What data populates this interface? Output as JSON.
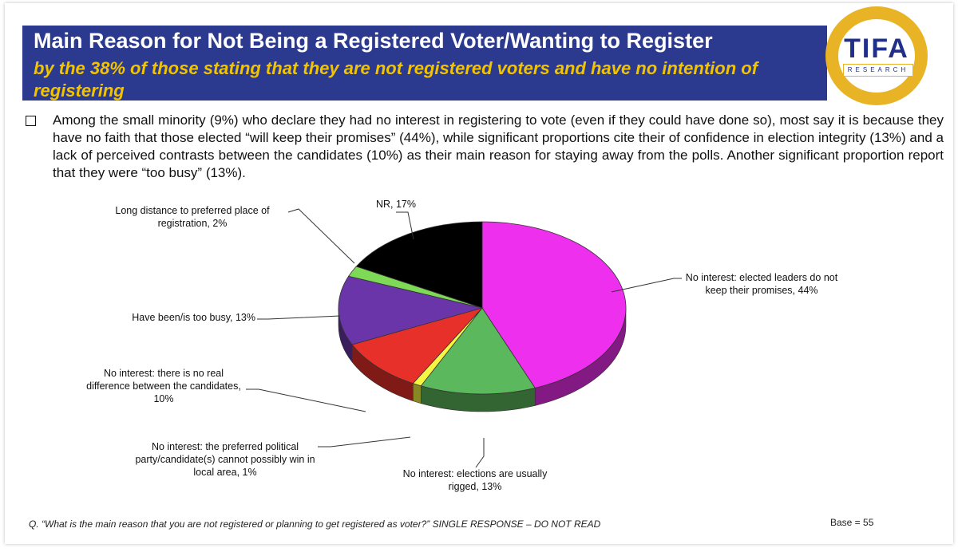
{
  "header": {
    "title": "Main Reason for Not Being a Registered Voter/Wanting to Register",
    "subtitle": "by the 38% of those stating that they are not registered voters and have no intention of registering"
  },
  "logo": {
    "text": "TIFA",
    "sub": "RESEARCH"
  },
  "bullet": "Among the small minority (9%) who declare they had no interest in registering to vote (even if they could have done so), most say it is because they have no faith that those elected “will keep their promises” (44%), while significant proportions cite their of confidence in election integrity (13%) and a lack of perceived contrasts between the candidates (10%) as their main reason for staying away from the polls. Another significant proportion report that they were “too busy” (13%).",
  "footer": {
    "question": "Q. “What is the main reason that you are not registered or planning to get registered as voter?” SINGLE RESPONSE – DO NOT READ",
    "base": "Base = 55"
  },
  "chart_data": {
    "type": "pie",
    "title": "",
    "slices": [
      {
        "label": "No interest: elected leaders do not keep their promises, 44%",
        "value": 44,
        "color": "#ee30ee"
      },
      {
        "label": "No interest: elections are usually rigged, 13%",
        "value": 13,
        "color": "#5cb85c"
      },
      {
        "label": "No interest: the preferred political party/candidate(s) cannot possibly win in local area, 1%",
        "value": 1,
        "color": "#f5f542"
      },
      {
        "label": "No interest: there is no real difference between the candidates, 10%",
        "value": 10,
        "color": "#e8302a"
      },
      {
        "label": "Have been/is too busy, 13%",
        "value": 13,
        "color": "#6a35a8"
      },
      {
        "label": "Long distance to preferred place of registration, 2%",
        "value": 2,
        "color": "#7ed957"
      },
      {
        "label": "NR, 17%",
        "value": 17,
        "color": "#000000"
      }
    ]
  }
}
